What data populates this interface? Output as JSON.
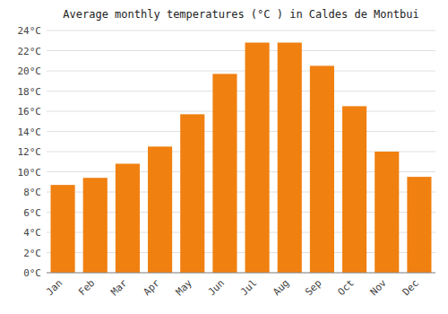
{
  "chart_data": {
    "type": "bar",
    "title": "Average monthly temperatures (°C ) in Caldes de Montbui",
    "categories": [
      "Jan",
      "Feb",
      "Mar",
      "Apr",
      "May",
      "Jun",
      "Jul",
      "Aug",
      "Sep",
      "Oct",
      "Nov",
      "Dec"
    ],
    "values": [
      8.7,
      9.4,
      10.8,
      12.5,
      15.7,
      19.7,
      22.8,
      22.8,
      20.5,
      16.5,
      12.0,
      9.5
    ],
    "color": "#F08010",
    "ylim": [
      0,
      24
    ],
    "yticks": [
      {
        "value": 0,
        "label": "0°C"
      },
      {
        "value": 2,
        "label": "2°C"
      },
      {
        "value": 4,
        "label": "4°C"
      },
      {
        "value": 6,
        "label": "6°C"
      },
      {
        "value": 8,
        "label": "8°C"
      },
      {
        "value": 10,
        "label": "10°C"
      },
      {
        "value": 12,
        "label": "12°C"
      },
      {
        "value": 14,
        "label": "14°C"
      },
      {
        "value": 16,
        "label": "16°C"
      },
      {
        "value": 18,
        "label": "18°C"
      },
      {
        "value": 20,
        "label": "20°C"
      },
      {
        "value": 22,
        "label": "22°C"
      },
      {
        "value": 24,
        "label": "24°C"
      }
    ],
    "grid": true
  }
}
